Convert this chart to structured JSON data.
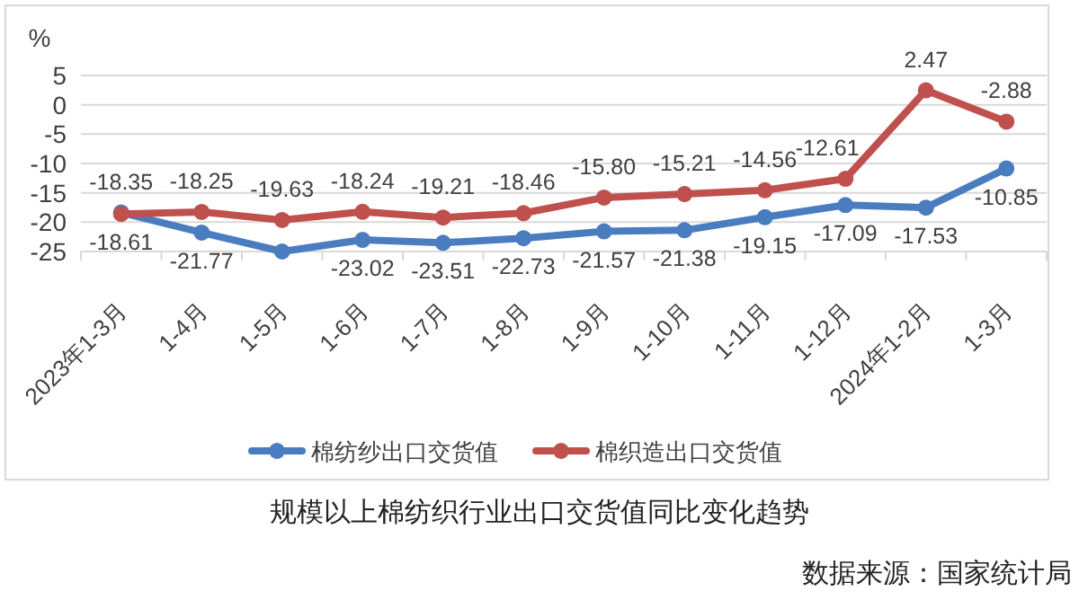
{
  "chart_data": {
    "type": "line",
    "title": "规模以上棉纺织行业出口交货值同比变化趋势",
    "ylabel": "%",
    "annotations": [
      "数据来源：国家统计局"
    ],
    "categories": [
      "2023年1-3月",
      "1-4月",
      "1-5月",
      "1-6月",
      "1-7月",
      "1-8月",
      "1-9月",
      "1-10月",
      "1-11月",
      "1-12月",
      "2024年1-2月",
      "1-3月"
    ],
    "series": [
      {
        "name": "棉纺纱出口交货值",
        "color": "#4a7cc0",
        "values": [
          -18.35,
          -21.77,
          -25,
          -23.02,
          -23.51,
          -22.73,
          -21.57,
          -21.38,
          -19.15,
          -17.09,
          -17.53,
          -10.85
        ],
        "value_labels": [
          "-18.35",
          "-21.77",
          null,
          "-23.02",
          "-23.51",
          "-22.73",
          "-21.57",
          "-21.38",
          "-19.15",
          "-17.09",
          "-17.53",
          "-10.85"
        ]
      },
      {
        "name": "棉织造出口交货值",
        "color": "#c0504d",
        "values": [
          -18.61,
          -18.25,
          -19.63,
          -18.24,
          -19.21,
          -18.46,
          -15.8,
          -15.21,
          -14.56,
          -12.61,
          2.47,
          -2.88
        ],
        "value_labels": [
          "-18.61",
          "-18.25",
          "-19.63",
          "-18.24",
          "-19.21",
          "-18.46",
          "-15.80",
          "-15.21",
          "-14.56",
          "-12.61",
          "2.47",
          "-2.88"
        ]
      }
    ],
    "ylim": [
      -25,
      5
    ],
    "yticks": [
      5,
      0,
      -5,
      -10,
      -15,
      -20,
      -25
    ],
    "grid": "y",
    "legend": "bottom",
    "marker": "circle",
    "line_style": "solid"
  }
}
